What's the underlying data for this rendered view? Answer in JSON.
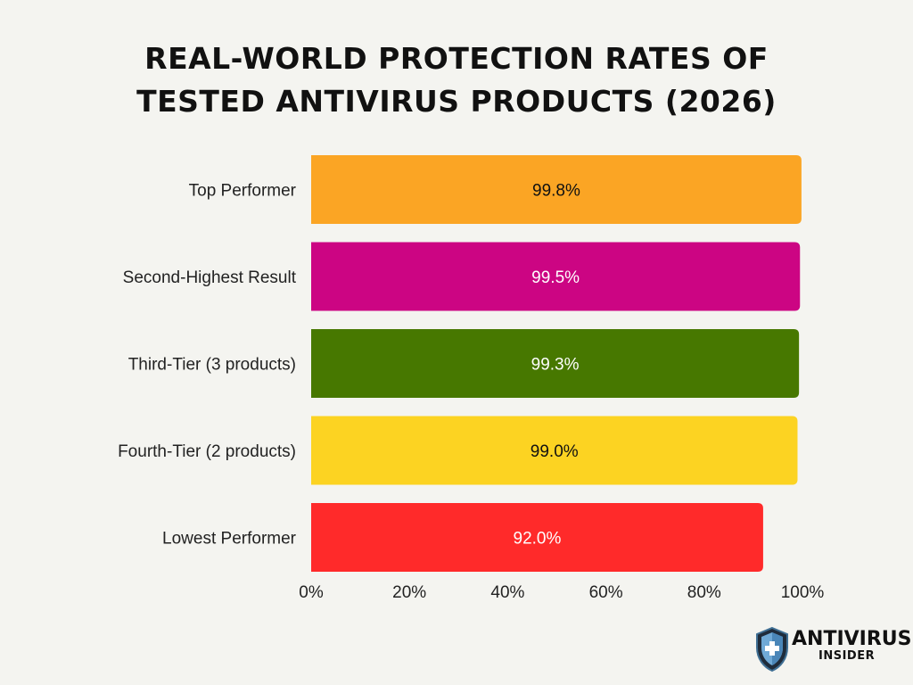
{
  "chart_data": {
    "type": "bar",
    "orientation": "horizontal",
    "title_lines": [
      "REAL-WORLD PROTECTION RATES OF",
      "TESTED ANTIVIRUS PRODUCTS (2026)"
    ],
    "categories": [
      "Top Performer",
      "Second-Highest Result",
      "Third-Tier (3 products)",
      "Fourth-Tier (2 products)",
      "Lowest Performer"
    ],
    "values": [
      99.8,
      99.5,
      99.3,
      99.0,
      92.0
    ],
    "value_labels": [
      "99.8%",
      "99.5%",
      "99.3%",
      "99.0%",
      "92.0%"
    ],
    "colors": [
      "#FBA524",
      "#CC0583",
      "#477800",
      "#FCD322",
      "#FF2A2A"
    ],
    "label_colors": [
      "#111111",
      "#ffffff",
      "#ffffff",
      "#111111",
      "#ffffff"
    ],
    "xlim": [
      0,
      100
    ],
    "xticks": [
      0,
      20,
      40,
      60,
      80,
      100
    ],
    "xtick_labels": [
      "0%",
      "20%",
      "40%",
      "60%",
      "80%",
      "100%"
    ],
    "xlabel": "",
    "ylabel": "",
    "grid": false,
    "legend": "none"
  },
  "branding": {
    "logo_main": "ANTIVIRUS",
    "logo_sub": "INSIDER",
    "logo_icon": "shield-icon"
  }
}
